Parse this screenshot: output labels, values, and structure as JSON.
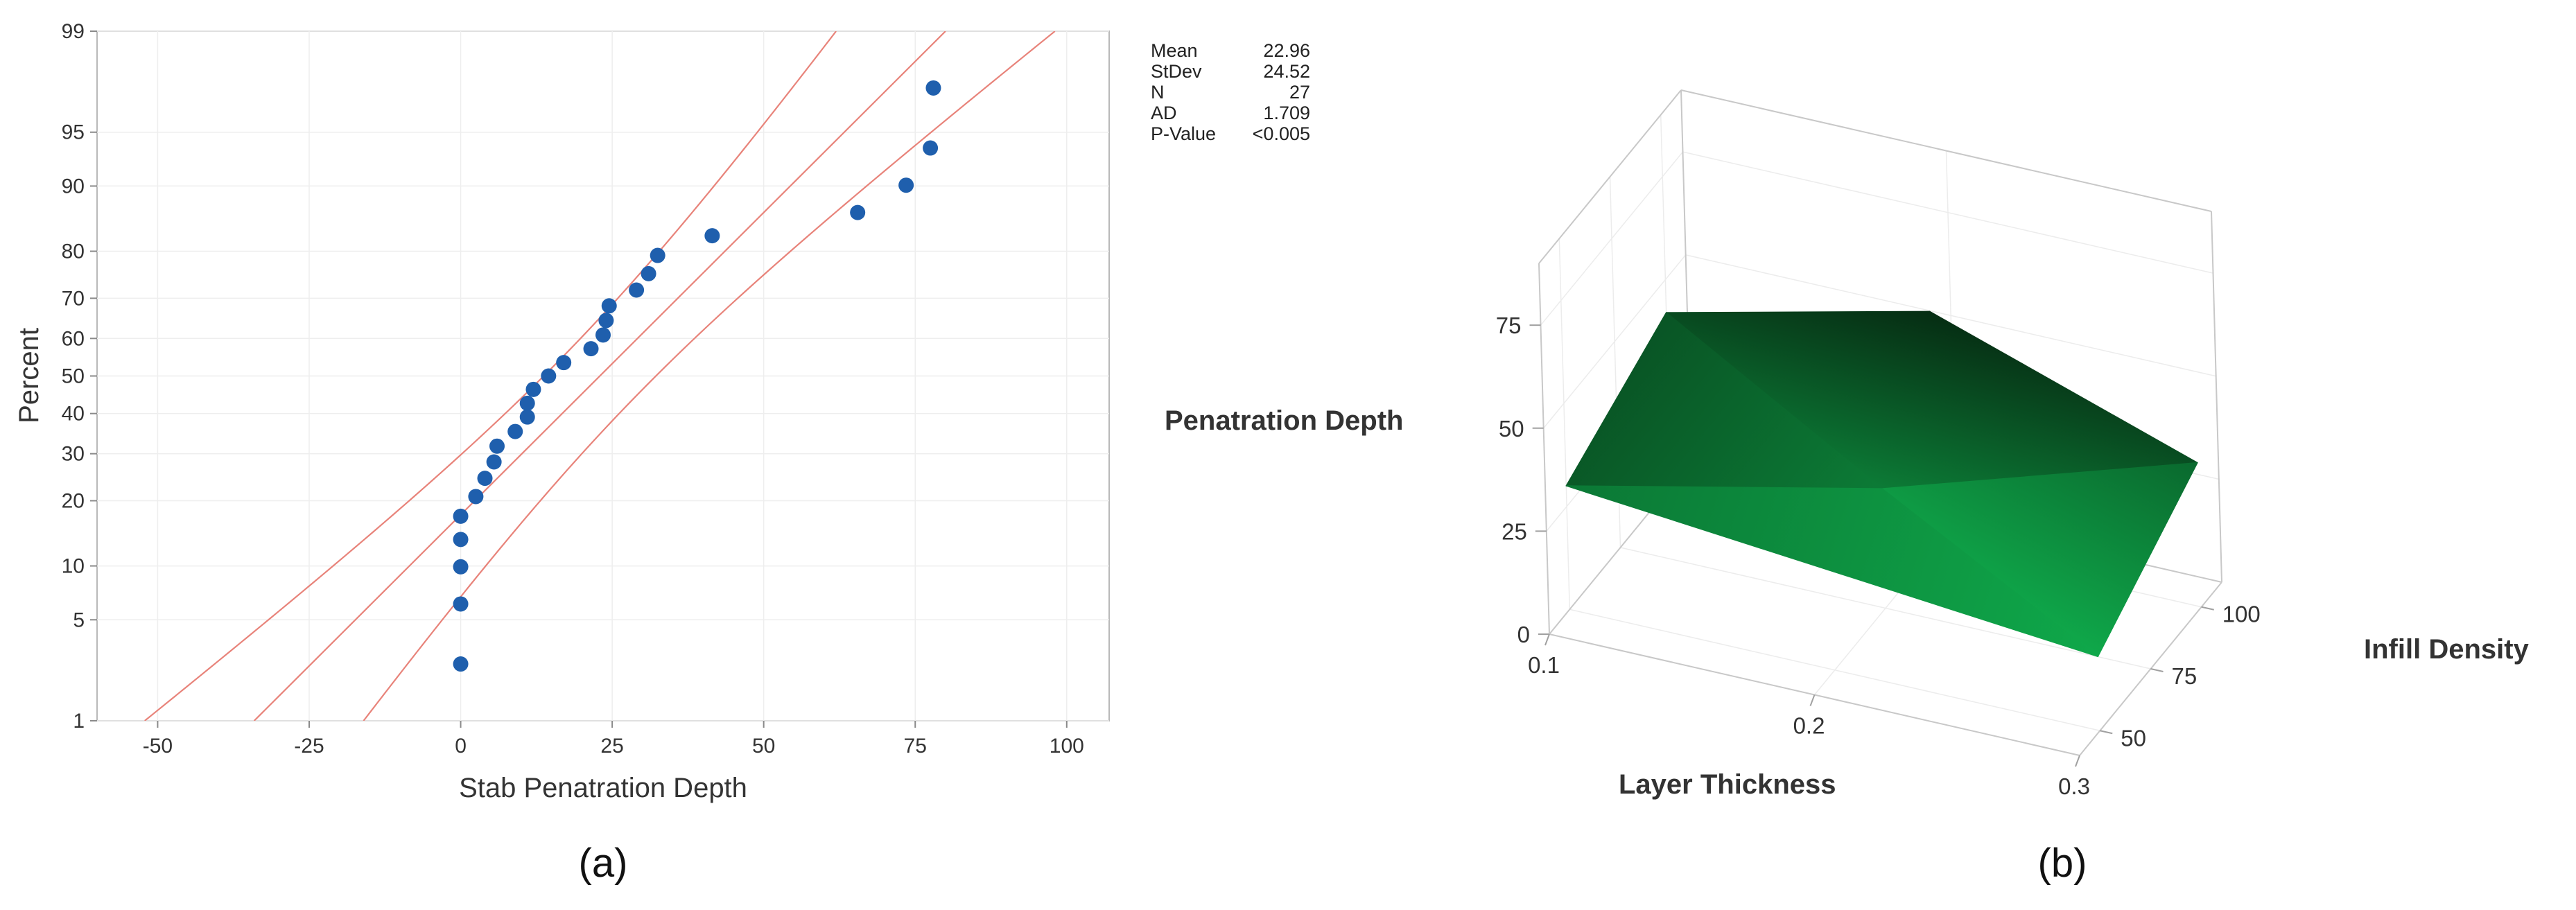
{
  "chart_data": [
    {
      "type": "scatter",
      "panel_label": "(a)",
      "xlabel": "Stab Penatration Depth",
      "ylabel": "Percent",
      "scale": "normal probability",
      "xlim": [
        -60,
        107
      ],
      "x_ticks": [
        -50,
        -25,
        0,
        25,
        50,
        75,
        100
      ],
      "y_ticks": [
        1,
        5,
        10,
        20,
        30,
        40,
        50,
        60,
        70,
        80,
        90,
        95,
        99
      ],
      "grid": true,
      "stats": [
        {
          "label": "Mean",
          "value": "22.96"
        },
        {
          "label": "StDev",
          "value": "24.52"
        },
        {
          "label": "N",
          "value": "27"
        },
        {
          "label": "AD",
          "value": "1.709"
        },
        {
          "label": "P-Value",
          "value": "<0.005"
        }
      ],
      "mean": 22.96,
      "stdev": 24.52,
      "confidence_band": true,
      "marker_color": "#1f5fad",
      "line_color": "#e8837a",
      "points": [
        {
          "x": 0,
          "percent": 2.6
        },
        {
          "x": 0,
          "percent": 6.2
        },
        {
          "x": 0,
          "percent": 9.9
        },
        {
          "x": 0,
          "percent": 13.5
        },
        {
          "x": 0,
          "percent": 17.2
        },
        {
          "x": 2.5,
          "percent": 20.8
        },
        {
          "x": 4,
          "percent": 24.5
        },
        {
          "x": 5.5,
          "percent": 28.1
        },
        {
          "x": 6,
          "percent": 31.8
        },
        {
          "x": 9,
          "percent": 35.4
        },
        {
          "x": 11,
          "percent": 39.1
        },
        {
          "x": 11,
          "percent": 42.7
        },
        {
          "x": 12,
          "percent": 46.4
        },
        {
          "x": 14.5,
          "percent": 50.0
        },
        {
          "x": 17,
          "percent": 53.6
        },
        {
          "x": 21.5,
          "percent": 57.3
        },
        {
          "x": 23.5,
          "percent": 60.9
        },
        {
          "x": 24,
          "percent": 64.6
        },
        {
          "x": 24.5,
          "percent": 68.2
        },
        {
          "x": 29,
          "percent": 71.9
        },
        {
          "x": 31,
          "percent": 75.5
        },
        {
          "x": 32.5,
          "percent": 79.2
        },
        {
          "x": 41.5,
          "percent": 82.8
        },
        {
          "x": 65.5,
          "percent": 86.5
        },
        {
          "x": 73.5,
          "percent": 90.1
        },
        {
          "x": 77.5,
          "percent": 93.8
        },
        {
          "x": 78,
          "percent": 97.4
        }
      ]
    },
    {
      "type": "surface",
      "panel_label": "(b)",
      "zlabel": "Penatration Depth",
      "xlabel": "Layer Thickness",
      "ylabel": "Infill Density",
      "x_ticks": [
        0.1,
        0.2,
        0.3
      ],
      "y_ticks": [
        50,
        75,
        100
      ],
      "z_ticks": [
        0,
        25,
        50,
        75
      ],
      "xlim": [
        0.1,
        0.3
      ],
      "ylim": [
        40,
        110
      ],
      "zlim": [
        0,
        90
      ],
      "color_low": "#0fa84a",
      "color_high": "#062d13",
      "grid": true,
      "surface_points": [
        {
          "x": 0.1,
          "y": 50,
          "z": 30
        },
        {
          "x": 0.1,
          "y": 100,
          "z": 42
        },
        {
          "x": 0.3,
          "y": 50,
          "z": 18
        },
        {
          "x": 0.3,
          "y": 100,
          "z": 35
        },
        {
          "x": 0.2,
          "y": 75,
          "z": 29
        },
        {
          "x": 0.2,
          "y": 100,
          "z": 57
        }
      ],
      "triangles": [
        [
          0,
          4,
          2
        ],
        [
          0,
          1,
          4
        ],
        [
          2,
          4,
          3
        ],
        [
          4,
          5,
          3
        ],
        [
          1,
          5,
          4
        ]
      ]
    }
  ]
}
